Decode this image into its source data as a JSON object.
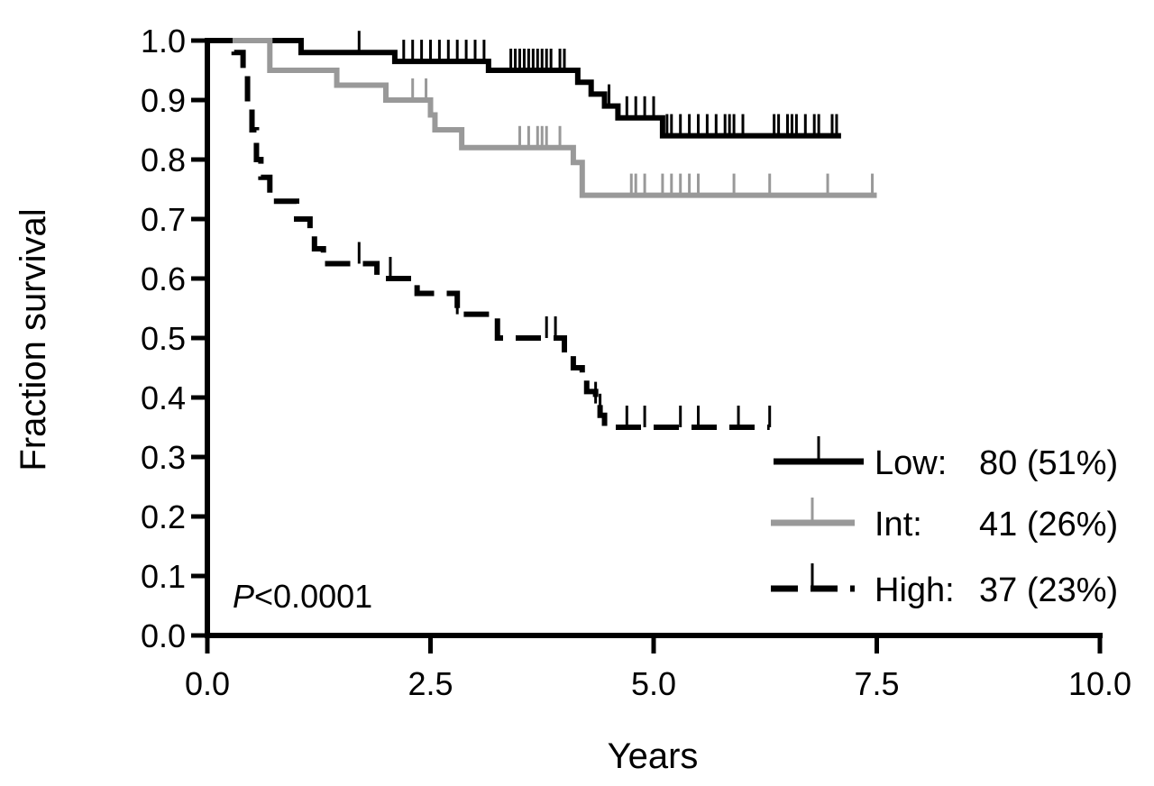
{
  "chart_data": {
    "type": "line",
    "subtype": "kaplan-meier",
    "xlabel": "Years",
    "ylabel": "Fraction survival",
    "xlim": [
      0,
      10
    ],
    "ylim": [
      0,
      1
    ],
    "xticks": [
      0,
      2.5,
      5,
      7.5,
      10
    ],
    "xtick_labels": [
      "0.0",
      "2.5",
      "5.0",
      "7.5",
      "10.0"
    ],
    "yticks": [
      0,
      0.1,
      0.2,
      0.3,
      0.4,
      0.5,
      0.6,
      0.7,
      0.8,
      0.9,
      1.0
    ],
    "ytick_labels": [
      "0.0",
      "0.1",
      "0.2",
      "0.3",
      "0.4",
      "0.5",
      "0.6",
      "0.7",
      "0.8",
      "0.9",
      "1.0"
    ],
    "annotation": {
      "italic": "P",
      "text": "<0.0001"
    },
    "legend_position": "bottom-right",
    "series": [
      {
        "id": "low",
        "name": "Low:",
        "count_label": "80 (51%)",
        "color": "#000000",
        "dash": "solid",
        "steps": [
          [
            0,
            1.0
          ],
          [
            1.05,
            0.98
          ],
          [
            2.1,
            0.965
          ],
          [
            3.15,
            0.95
          ],
          [
            4.15,
            0.93
          ],
          [
            4.3,
            0.91
          ],
          [
            4.45,
            0.89
          ],
          [
            4.6,
            0.87
          ],
          [
            5.1,
            0.84
          ],
          [
            7.1,
            0.84
          ]
        ],
        "censors": [
          1.7,
          2.2,
          2.3,
          2.4,
          2.5,
          2.6,
          2.7,
          2.8,
          2.9,
          3.0,
          3.1,
          3.4,
          3.45,
          3.5,
          3.55,
          3.6,
          3.65,
          3.7,
          3.75,
          3.8,
          3.85,
          3.95,
          4.0,
          4.5,
          4.7,
          4.8,
          4.9,
          5.0,
          5.15,
          5.2,
          5.3,
          5.4,
          5.5,
          5.6,
          5.7,
          5.8,
          5.85,
          5.9,
          6.0,
          6.35,
          6.4,
          6.5,
          6.55,
          6.6,
          6.7,
          6.8,
          6.85,
          7.0,
          7.05
        ]
      },
      {
        "id": "int",
        "name": "Int:",
        "count_label": "41 (26%)",
        "color": "#999999",
        "dash": "solid",
        "steps": [
          [
            0,
            1.0
          ],
          [
            0.7,
            0.95
          ],
          [
            1.45,
            0.925
          ],
          [
            2.0,
            0.9
          ],
          [
            2.5,
            0.875
          ],
          [
            2.55,
            0.85
          ],
          [
            2.85,
            0.82
          ],
          [
            4.1,
            0.795
          ],
          [
            4.2,
            0.77
          ],
          [
            4.2,
            0.74
          ],
          [
            7.5,
            0.74
          ]
        ],
        "censors": [
          0.7,
          2.3,
          2.45,
          3.5,
          3.6,
          3.7,
          3.75,
          3.8,
          3.95,
          4.75,
          4.8,
          4.9,
          5.1,
          5.2,
          5.3,
          5.4,
          5.5,
          5.9,
          6.3,
          6.95,
          7.45
        ]
      },
      {
        "id": "high",
        "name": "High:",
        "count_label": "37 (23%)",
        "color": "#000000",
        "dash": "dashed",
        "steps": [
          [
            0,
            1.0
          ],
          [
            0.3,
            0.98
          ],
          [
            0.4,
            0.95
          ],
          [
            0.45,
            0.89
          ],
          [
            0.5,
            0.85
          ],
          [
            0.55,
            0.8
          ],
          [
            0.6,
            0.77
          ],
          [
            0.7,
            0.73
          ],
          [
            1.0,
            0.7
          ],
          [
            1.15,
            0.675
          ],
          [
            1.2,
            0.65
          ],
          [
            1.3,
            0.625
          ],
          [
            1.9,
            0.6
          ],
          [
            2.35,
            0.575
          ],
          [
            2.8,
            0.54
          ],
          [
            3.25,
            0.5
          ],
          [
            4.0,
            0.475
          ],
          [
            4.1,
            0.45
          ],
          [
            4.2,
            0.43
          ],
          [
            4.25,
            0.41
          ],
          [
            4.35,
            0.39
          ],
          [
            4.4,
            0.37
          ],
          [
            4.45,
            0.35
          ],
          [
            6.3,
            0.35
          ]
        ],
        "censors": [
          1.7,
          2.05,
          2.8,
          3.8,
          3.9,
          4.35,
          4.4,
          4.7,
          4.9,
          5.3,
          5.5,
          5.95,
          6.3
        ]
      }
    ]
  }
}
